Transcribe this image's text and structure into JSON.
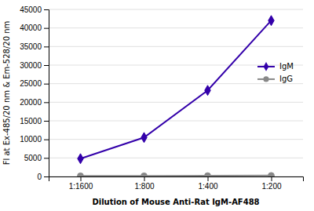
{
  "chart_data": {
    "type": "line",
    "categories": [
      "1:1600",
      "1:800",
      "1:400",
      "1:200"
    ],
    "series": [
      {
        "name": "IgM",
        "color": "#3300AA",
        "marker": "diamond",
        "values": [
          4800,
          10500,
          23200,
          42000
        ]
      },
      {
        "name": "IgG",
        "color": "#888888",
        "marker": "circle",
        "values": [
          150,
          150,
          200,
          250
        ]
      }
    ],
    "xlabel": "Dilution of Mouse Anti-Rat IgM-AF488",
    "ylabel": "Fl at Ex-485/20 nm & Em-528/20 nm",
    "ylim": [
      0,
      45000
    ],
    "yticks": [
      0,
      5000,
      10000,
      15000,
      20000,
      25000,
      30000,
      35000,
      40000,
      45000
    ],
    "grid": true,
    "legend": "right"
  }
}
